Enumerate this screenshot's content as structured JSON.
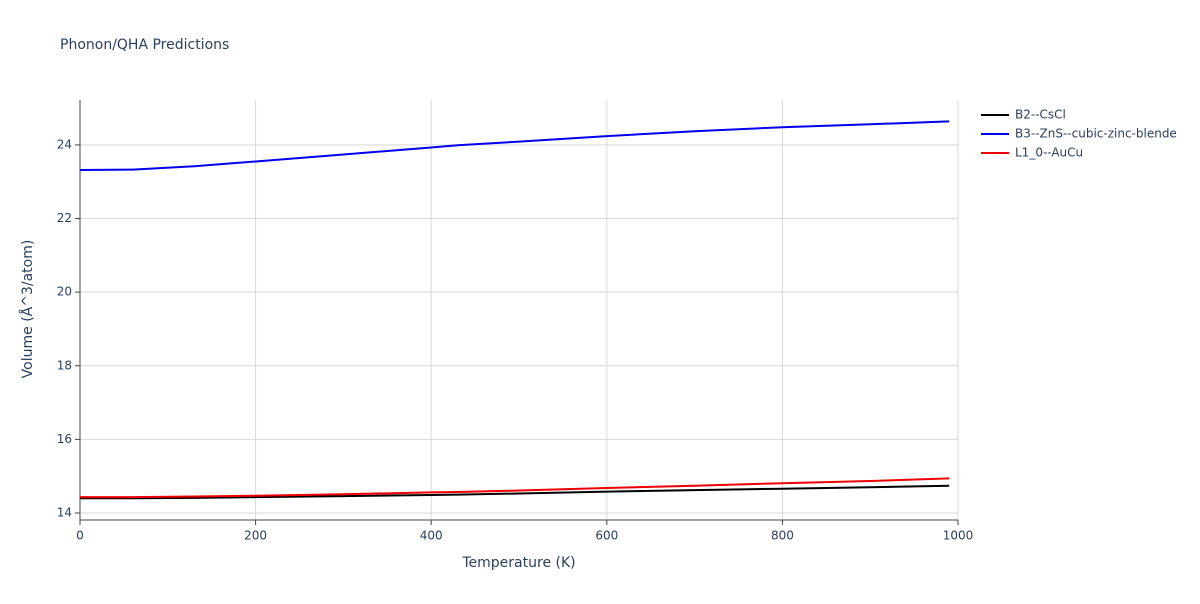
{
  "chart_data": {
    "type": "line",
    "title": "Phonon/QHA Predictions",
    "x_label": "Temperature (K)",
    "y_label": "Volume (Å^3/atom)",
    "x": [
      0,
      60,
      130,
      200,
      300,
      400,
      430,
      500,
      600,
      700,
      800,
      900,
      990
    ],
    "series": [
      {
        "name": "B2--CsCl",
        "color": "#000000",
        "values": [
          14.4,
          14.4,
          14.41,
          14.43,
          14.46,
          14.49,
          14.5,
          14.53,
          14.58,
          14.62,
          14.66,
          14.7,
          14.74
        ]
      },
      {
        "name": "B3--ZnS--cubic-zinc-blende",
        "color": "#0000ee",
        "values": [
          23.32,
          23.33,
          23.42,
          23.55,
          23.74,
          23.93,
          23.99,
          24.09,
          24.24,
          24.37,
          24.48,
          24.56,
          24.64
        ]
      },
      {
        "name": "L1_0--AuCu",
        "color": "#ee0000",
        "values": [
          14.43,
          14.43,
          14.45,
          14.47,
          14.51,
          14.56,
          14.57,
          14.61,
          14.68,
          14.74,
          14.81,
          14.87,
          14.94
        ]
      }
    ],
    "xlim": [
      0,
      1000
    ],
    "xticks": [
      0,
      200,
      400,
      600,
      800,
      1000
    ],
    "ylim": [
      13.81,
      25.22
    ],
    "yticks": [
      14,
      16,
      18,
      20,
      22,
      24
    ],
    "grid": true,
    "legend": "right"
  }
}
